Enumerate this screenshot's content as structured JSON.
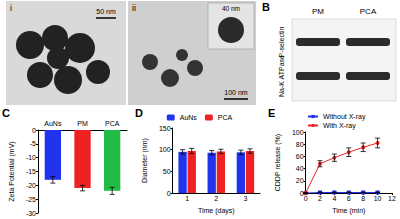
{
  "figure": {
    "panel_A": {
      "images": [
        {
          "label": "i",
          "scale_bar": "50 nm"
        },
        {
          "label": "ii",
          "scale_bar": "100 nm",
          "inset_scale_bar": "40 nm"
        }
      ]
    },
    "panel_B": {
      "label": "B",
      "columns": [
        "PM",
        "PCA"
      ],
      "rows": [
        "P-selectin",
        "Na-K ATPase"
      ]
    }
  },
  "chart_data": [
    {
      "panel": "C",
      "type": "bar",
      "categories": [
        "AuNs",
        "PM",
        "PCA"
      ],
      "values": [
        -18,
        -21,
        -22
      ],
      "errors": [
        1.2,
        1.0,
        1.3
      ],
      "colors": [
        "#2233ee",
        "#ee2222",
        "#22bb44"
      ],
      "ylabel": "Zeta Potential (mV)",
      "ylim": [
        -30,
        0
      ],
      "yticks": [
        -30,
        -25,
        -20,
        -15,
        -10,
        -5,
        0
      ]
    },
    {
      "panel": "D",
      "type": "bar",
      "categories": [
        "1",
        "2",
        "3"
      ],
      "xlabel": "Time (days)",
      "ylabel": "Diameter (nm)",
      "series": [
        {
          "name": "AuNs",
          "color": "#2233ee",
          "values": [
            95,
            93,
            94
          ],
          "errors": [
            5,
            5,
            5
          ]
        },
        {
          "name": "PCA",
          "color": "#ee2222",
          "values": [
            97,
            96,
            97
          ],
          "errors": [
            6,
            5,
            5
          ]
        }
      ],
      "ylim": [
        0,
        150
      ],
      "yticks": [
        0,
        50,
        100,
        150
      ],
      "legend": "top"
    },
    {
      "panel": "E",
      "type": "line",
      "x": [
        0,
        2,
        4,
        6,
        8,
        10
      ],
      "xlabel": "Time (min)",
      "ylabel": "CDDP release (%)",
      "series": [
        {
          "name": "Without X-ray",
          "color": "#2233ee",
          "marker": "rect",
          "values": [
            0,
            1,
            1,
            1,
            1,
            1
          ],
          "errors": [
            0,
            0.5,
            0.5,
            0.5,
            0.5,
            0.5
          ]
        },
        {
          "name": "With X-ray",
          "color": "#ee2222",
          "marker": "circle",
          "values": [
            0,
            48,
            58,
            67,
            75,
            82
          ],
          "errors": [
            0,
            5,
            6,
            7,
            7,
            8
          ]
        }
      ],
      "xlim": [
        0,
        12
      ],
      "xticks": [
        0,
        2,
        4,
        6,
        8,
        10,
        12
      ],
      "ylim": [
        0,
        100
      ],
      "yticks": [
        0,
        20,
        40,
        60,
        80,
        100
      ],
      "legend": "top-left"
    }
  ]
}
